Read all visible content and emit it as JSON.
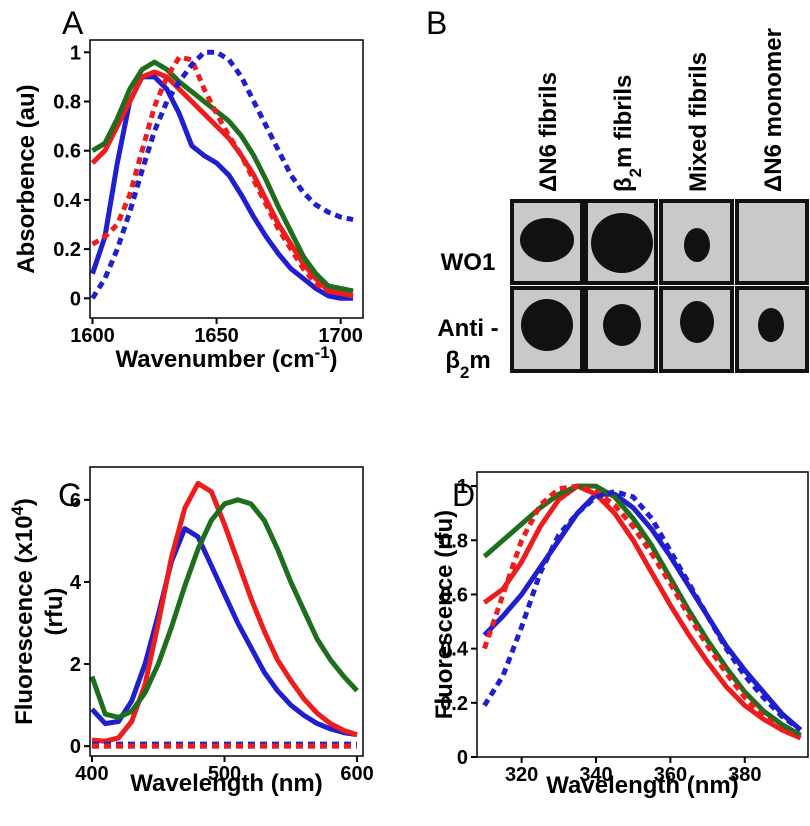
{
  "chart_data": [
    {
      "type": "line",
      "panel": "A",
      "y_label": [
        [
          "Absorbence (au)"
        ]
      ],
      "x_label": [
        [
          "Wavenumber (cm",
          "-1",
          ")"
        ]
      ],
      "xlim": [
        1599,
        1709
      ],
      "ylim": [
        -0.08,
        1.05
      ],
      "xticks": [
        1600,
        1650,
        1700
      ],
      "yticks": [
        0,
        0.2,
        0.4,
        0.6,
        0.8,
        1
      ],
      "x": [
        1600,
        1605,
        1610,
        1615,
        1620,
        1625,
        1630,
        1635,
        1640,
        1645,
        1650,
        1655,
        1660,
        1665,
        1670,
        1675,
        1680,
        1685,
        1690,
        1695,
        1700,
        1705
      ],
      "series": [
        {
          "color": "#1f1fd0",
          "dashed": false,
          "values": [
            0.1,
            0.25,
            0.55,
            0.8,
            0.9,
            0.9,
            0.85,
            0.75,
            0.62,
            0.58,
            0.55,
            0.5,
            0.42,
            0.33,
            0.25,
            0.18,
            0.12,
            0.08,
            0.04,
            0.01,
            0.0,
            0.0
          ]
        },
        {
          "color": "#ee1c1c",
          "dashed": false,
          "values": [
            0.55,
            0.6,
            0.7,
            0.8,
            0.9,
            0.92,
            0.9,
            0.85,
            0.8,
            0.75,
            0.7,
            0.65,
            0.58,
            0.5,
            0.4,
            0.3,
            0.22,
            0.14,
            0.08,
            0.03,
            0.02,
            0.01
          ]
        },
        {
          "color": "#1e6e1e",
          "dashed": false,
          "values": [
            0.6,
            0.63,
            0.73,
            0.85,
            0.93,
            0.96,
            0.93,
            0.88,
            0.84,
            0.8,
            0.76,
            0.72,
            0.66,
            0.58,
            0.48,
            0.37,
            0.27,
            0.17,
            0.1,
            0.05,
            0.04,
            0.03
          ]
        },
        {
          "color": "#ee1c1c",
          "dashed": true,
          "values": [
            0.22,
            0.25,
            0.3,
            0.42,
            0.6,
            0.78,
            0.9,
            0.98,
            0.97,
            0.85,
            0.75,
            0.66,
            0.58,
            0.48,
            0.38,
            0.28,
            0.2,
            0.12,
            0.06,
            0.03,
            0.02,
            0.01
          ]
        },
        {
          "color": "#1f1fd0",
          "dashed": true,
          "values": [
            0,
            0.08,
            0.2,
            0.35,
            0.52,
            0.68,
            0.8,
            0.88,
            0.95,
            1,
            1,
            0.97,
            0.9,
            0.8,
            0.7,
            0.6,
            0.5,
            0.43,
            0.38,
            0.35,
            0.33,
            0.32
          ]
        }
      ]
    },
    {
      "type": "line",
      "panel": "C",
      "y_label": [
        [
          "Fluorescence (x10",
          "4",
          ")"
        ],
        [
          "(rfu)"
        ]
      ],
      "x_label": [
        [
          "Wavelength (nm)"
        ]
      ],
      "xlim": [
        398.5,
        604.5
      ],
      "ylim": [
        -0.24,
        6.8
      ],
      "xticks": [
        400,
        500,
        600
      ],
      "yticks": [
        0,
        2,
        4,
        6
      ],
      "x": [
        400,
        410,
        420,
        430,
        440,
        450,
        460,
        470,
        480,
        490,
        500,
        510,
        520,
        530,
        540,
        550,
        560,
        570,
        580,
        590,
        600
      ],
      "series": [
        {
          "color": "#1f1fd0",
          "dashed": false,
          "values": [
            0.9,
            0.55,
            0.6,
            1.1,
            2.0,
            3.2,
            4.5,
            5.3,
            5.1,
            4.4,
            3.7,
            3.0,
            2.4,
            1.8,
            1.35,
            1.0,
            0.75,
            0.55,
            0.42,
            0.33,
            0.28
          ]
        },
        {
          "color": "#ee1c1c",
          "dashed": false,
          "values": [
            0.15,
            0.12,
            0.2,
            0.6,
            1.5,
            3.0,
            4.6,
            5.8,
            6.4,
            6.2,
            5.4,
            4.5,
            3.6,
            2.8,
            2.1,
            1.6,
            1.15,
            0.8,
            0.55,
            0.38,
            0.28
          ]
        },
        {
          "color": "#1e6e1e",
          "dashed": false,
          "values": [
            1.7,
            0.78,
            0.7,
            0.85,
            1.3,
            2.0,
            2.9,
            3.9,
            4.8,
            5.5,
            5.9,
            6.0,
            5.9,
            5.5,
            4.8,
            4.0,
            3.3,
            2.6,
            2.1,
            1.7,
            1.35
          ]
        },
        {
          "color": "#1f1fd0",
          "dashed": true,
          "values": [
            0.05,
            0.05,
            0.05,
            0.05,
            0.05,
            0.05,
            0.05,
            0.05,
            0.05,
            0.05,
            0.05,
            0.05,
            0.05,
            0.05,
            0.05,
            0.05,
            0.05,
            0.05,
            0.05,
            0.05,
            0.05
          ]
        },
        {
          "color": "#1e6e1e",
          "dashed": true,
          "values": [
            0,
            0,
            0,
            0,
            0,
            0,
            0,
            0,
            0,
            0,
            0,
            0,
            0,
            0,
            0,
            0,
            0,
            0,
            0,
            0,
            0
          ]
        },
        {
          "color": "#ee1c1c",
          "dashed": true,
          "values": [
            0,
            0,
            0,
            0,
            0,
            0,
            0,
            0,
            0,
            0,
            0,
            0,
            0,
            0,
            0,
            0,
            0,
            0,
            0,
            0,
            0
          ]
        }
      ]
    },
    {
      "type": "line",
      "panel": "D",
      "y_label": [
        [
          "Fluorescence (rfu)"
        ]
      ],
      "x_label": [
        [
          "Wavelength (nm)"
        ]
      ],
      "xlim": [
        308,
        397
      ],
      "ylim": [
        0,
        1.052
      ],
      "xticks": [
        320,
        340,
        360,
        380
      ],
      "yticks": [
        0,
        0.2,
        0.4,
        0.6,
        0.8,
        1
      ],
      "x": [
        310,
        315,
        320,
        325,
        330,
        335,
        340,
        345,
        350,
        355,
        360,
        365,
        370,
        375,
        380,
        385,
        390,
        395
      ],
      "series": [
        {
          "color": "#1f1fd0",
          "dashed": false,
          "values": [
            0.45,
            0.52,
            0.6,
            0.7,
            0.8,
            0.9,
            0.97,
            0.97,
            0.92,
            0.84,
            0.74,
            0.63,
            0.52,
            0.41,
            0.32,
            0.24,
            0.16,
            0.1
          ]
        },
        {
          "color": "#ee1c1c",
          "dashed": false,
          "values": [
            0.57,
            0.62,
            0.72,
            0.85,
            0.95,
            1.0,
            0.97,
            0.9,
            0.8,
            0.68,
            0.56,
            0.45,
            0.35,
            0.26,
            0.19,
            0.14,
            0.1,
            0.07
          ]
        },
        {
          "color": "#1e6e1e",
          "dashed": false,
          "values": [
            0.74,
            0.8,
            0.86,
            0.92,
            0.97,
            1.0,
            1.0,
            0.96,
            0.88,
            0.78,
            0.66,
            0.54,
            0.43,
            0.33,
            0.24,
            0.17,
            0.12,
            0.08
          ]
        },
        {
          "color": "#ee1c1c",
          "dashed": true,
          "values": [
            0.4,
            0.6,
            0.8,
            0.93,
            0.99,
            1.0,
            0.98,
            0.93,
            0.85,
            0.75,
            0.64,
            0.52,
            0.41,
            0.31,
            0.22,
            0.15,
            0.1,
            0.07
          ]
        },
        {
          "color": "#1f1fd0",
          "dashed": true,
          "values": [
            0.19,
            0.3,
            0.48,
            0.68,
            0.82,
            0.9,
            0.96,
            0.98,
            0.96,
            0.88,
            0.76,
            0.64,
            0.52,
            0.4,
            0.3,
            0.22,
            0.15,
            0.1
          ]
        }
      ]
    }
  ],
  "blot": {
    "panel": "B",
    "columns": [
      [
        "ΔN6 fibrils"
      ],
      [
        "β",
        "2",
        "m fibrils"
      ],
      [
        "Mixed fibrils"
      ],
      [
        "ΔN6 monomer"
      ]
    ],
    "rows": [
      [
        [
          "WO1"
        ]
      ],
      [
        [
          "Anti -"
        ],
        [
          "β",
          "2",
          "m"
        ]
      ]
    ]
  }
}
